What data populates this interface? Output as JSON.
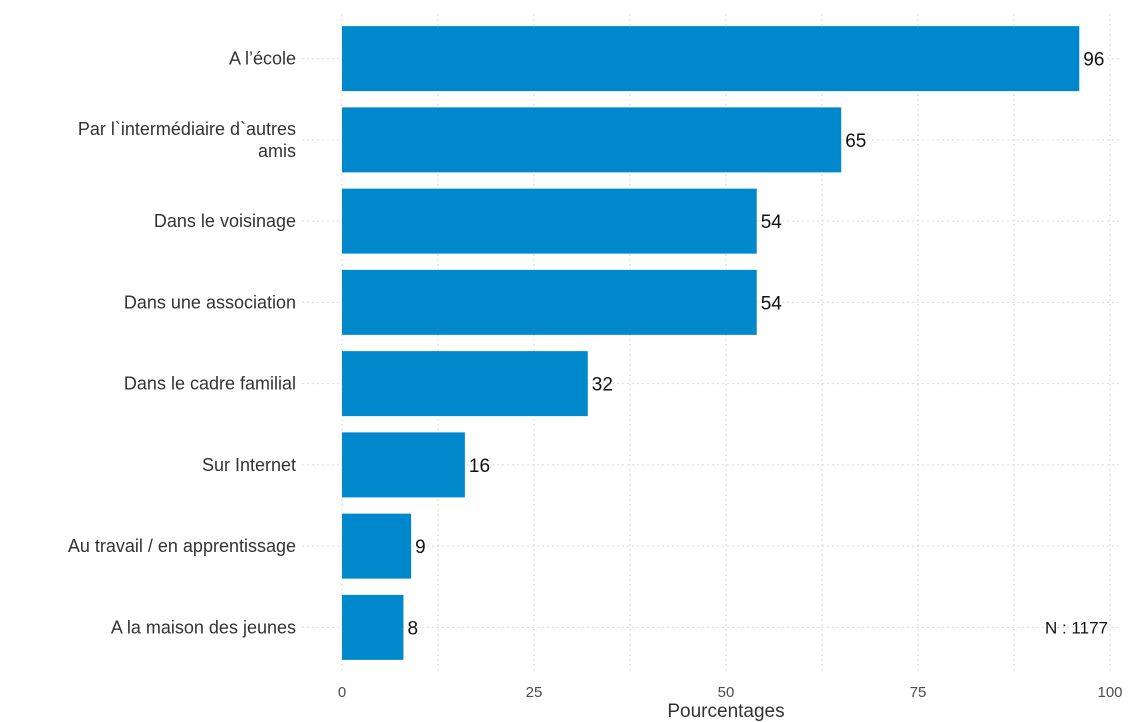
{
  "chart_data": {
    "type": "bar",
    "orientation": "horizontal",
    "categories": [
      "A l’école",
      "Par l`intermédiaire d`autres amis",
      "Dans le voisinage",
      "Dans une association",
      "Dans le cadre familial",
      "Sur Internet",
      "Au travail / en apprentissage",
      "A la maison des jeunes"
    ],
    "values": [
      96,
      65,
      54,
      54,
      32,
      16,
      9,
      8
    ],
    "value_labels": [
      "96",
      "65",
      "54",
      "54",
      "32",
      "16",
      "9",
      "8"
    ],
    "xlabel": "Pourcentages",
    "xlim": [
      0,
      100
    ],
    "xticks": [
      0,
      25,
      50,
      75,
      100
    ],
    "grid": true,
    "bar_color": "#0088cc",
    "note": "N : 1177"
  }
}
